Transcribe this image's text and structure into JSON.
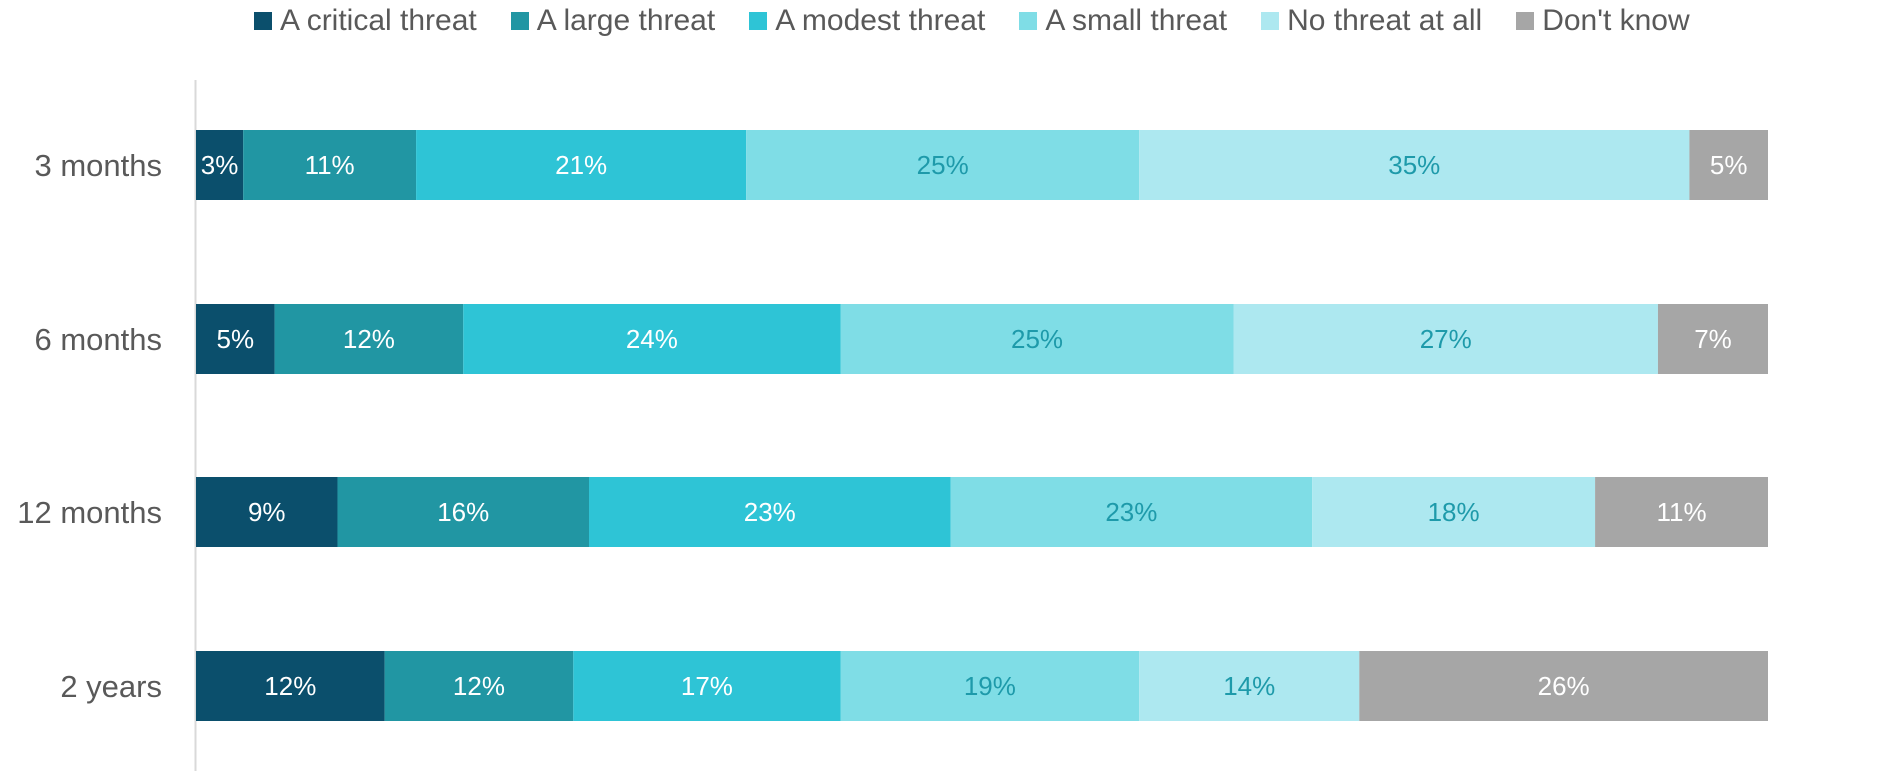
{
  "chart_data": {
    "type": "bar",
    "orientation": "horizontal",
    "stacked": true,
    "categories": [
      "3 months",
      "6 months",
      "12 months",
      "2 years"
    ],
    "series": [
      {
        "name": "A critical threat",
        "color": "#0B4F6C",
        "values": [
          3,
          5,
          9,
          12
        ],
        "labels": [
          "3%",
          "5%",
          "9%",
          "12%"
        ],
        "label_color": "#ffffff"
      },
      {
        "name": "A large threat",
        "color": "#2196A3",
        "values": [
          11,
          12,
          16,
          12
        ],
        "labels": [
          "11%",
          "12%",
          "16%",
          "12%"
        ],
        "label_color": "#ffffff"
      },
      {
        "name": "A modest threat",
        "color": "#2EC4D6",
        "values": [
          21,
          24,
          23,
          17
        ],
        "labels": [
          "21%",
          "24%",
          "23%",
          "17%"
        ],
        "label_color": "#ffffff"
      },
      {
        "name": "A small threat",
        "color": "#7FDDE6",
        "values": [
          25,
          25,
          23,
          19
        ],
        "labels": [
          "25%",
          "25%",
          "23%",
          "19%"
        ],
        "label_color": "#1E9AAA"
      },
      {
        "name": "No threat at all",
        "color": "#ADE8F0",
        "values": [
          35,
          27,
          18,
          14
        ],
        "labels": [
          "35%",
          "27%",
          "18%",
          "14%"
        ],
        "label_color": "#1E9AAA"
      },
      {
        "name": "Don't know",
        "color": "#A6A6A6",
        "values": [
          5,
          7,
          11,
          26
        ],
        "labels": [
          "5%",
          "7%",
          "11%",
          "26%"
        ],
        "label_color": "#ffffff"
      }
    ],
    "legend_position": "top",
    "grid": false
  }
}
